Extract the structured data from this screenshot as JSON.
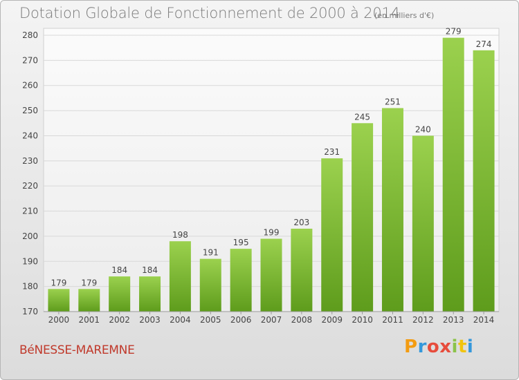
{
  "title": "Dotation Globale de Fonctionnement de 2000 à 2014",
  "subtitle": "(en milliers d'€)",
  "commune": "BéNESSE-MAREMNE",
  "brand": {
    "letters": [
      "P",
      "r",
      "o",
      "x",
      "i",
      "t",
      "i"
    ],
    "colors": [
      "#f39c12",
      "#3498db",
      "#e74c3c",
      "#e74c3c",
      "#8bc34a",
      "#f1c40f",
      "#3498db"
    ]
  },
  "colors": {
    "bar_top": "#9bd14e",
    "bar_bottom": "#5e9c1c",
    "grid": "#d8d8d8",
    "text": "#444444"
  },
  "chart_data": {
    "type": "bar",
    "categories": [
      "2000",
      "2001",
      "2002",
      "2003",
      "2004",
      "2005",
      "2006",
      "2007",
      "2008",
      "2009",
      "2010",
      "2011",
      "2012",
      "2013",
      "2014"
    ],
    "values": [
      179,
      179,
      184,
      184,
      198,
      191,
      195,
      199,
      203,
      231,
      245,
      251,
      240,
      279,
      274
    ],
    "ylim": [
      170,
      280
    ],
    "yticks": [
      170,
      180,
      190,
      200,
      210,
      220,
      230,
      240,
      250,
      260,
      270,
      280
    ],
    "grid": true,
    "xlabel": "",
    "ylabel": ""
  }
}
